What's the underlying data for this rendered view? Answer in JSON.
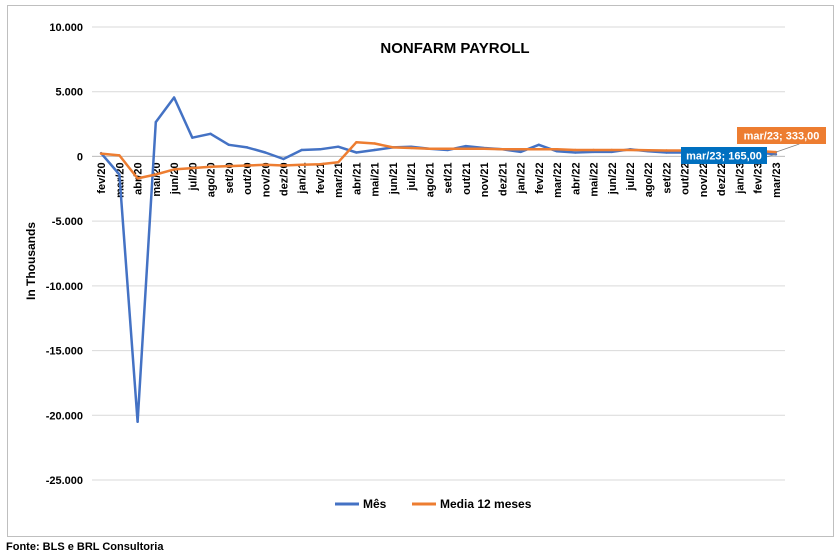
{
  "footer": {
    "source": "Fonte: BLS e BRL Consultoria"
  },
  "chart_data": {
    "type": "line",
    "title": "NONFARM PAYROLL",
    "xlabel": "",
    "ylabel": "In Thousands",
    "ylim": [
      -25000,
      10000
    ],
    "y_ticks": [
      10000,
      5000,
      0,
      -5000,
      -10000,
      -15000,
      -20000,
      -25000
    ],
    "y_tick_labels": [
      "10.000",
      "5.000",
      "0",
      "-5.000",
      "-10.000",
      "-15.000",
      "-20.000",
      "-25.000"
    ],
    "grid": "horizontal",
    "legend_position": "bottom",
    "categories": [
      "fev/20",
      "mar/20",
      "abr/20",
      "mai/20",
      "jun/20",
      "jul/20",
      "ago/20",
      "set/20",
      "out/20",
      "nov/20",
      "dez/20",
      "jan/21",
      "fev/21",
      "mar/21",
      "abr/21",
      "mai/21",
      "jun/21",
      "jul/21",
      "ago/21",
      "set/21",
      "out/21",
      "nov/21",
      "dez/21",
      "jan/22",
      "fev/22",
      "mar/22",
      "abr/22",
      "mai/22",
      "jun/22",
      "jul/22",
      "ago/22",
      "set/22",
      "out/22",
      "nov/22",
      "dez/22",
      "jan/23",
      "fev/23",
      "mar/23"
    ],
    "series": [
      {
        "name": "Mês",
        "color": "#4472c4",
        "values": [
          250,
          -1400,
          -20500,
          2650,
          4550,
          1450,
          1750,
          900,
          700,
          300,
          -200,
          500,
          550,
          750,
          300,
          500,
          700,
          750,
          600,
          500,
          800,
          650,
          550,
          350,
          900,
          400,
          300,
          350,
          350,
          550,
          400,
          300,
          300,
          250,
          250,
          450,
          300,
          165
        ]
      },
      {
        "name": "Media 12 meses",
        "color": "#ed7d31",
        "values": [
          220,
          80,
          -1700,
          -1400,
          -1000,
          -900,
          -800,
          -750,
          -700,
          -650,
          -700,
          -650,
          -600,
          -450,
          1100,
          1000,
          700,
          650,
          600,
          600,
          600,
          600,
          550,
          550,
          550,
          550,
          500,
          500,
          500,
          500,
          480,
          460,
          460,
          450,
          450,
          440,
          420,
          333
        ]
      }
    ],
    "annotations": [
      {
        "label": "mar/23; 333,00",
        "series": "Media 12 meses",
        "category": "mar/23",
        "value": 333,
        "color": "#ed7d31"
      },
      {
        "label": "mar/23; 165,00",
        "series": "Mês",
        "category": "mar/23",
        "value": 165,
        "color": "#0070c0"
      }
    ]
  }
}
